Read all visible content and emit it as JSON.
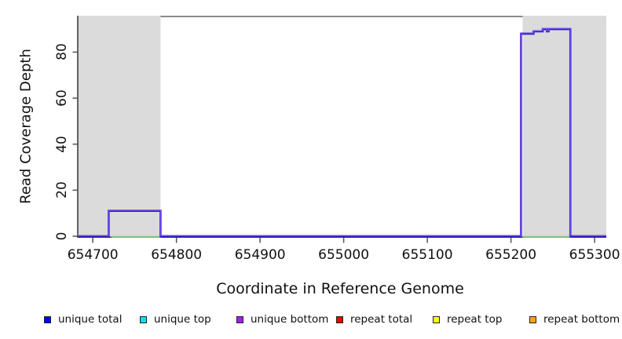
{
  "chart_data": {
    "type": "line",
    "subtype": "step-coverage",
    "title": "",
    "xlabel": "Coordinate in Reference Genome",
    "ylabel": "Read Coverage Depth",
    "xlim": [
      654682,
      655314
    ],
    "ylim": [
      0,
      95.8
    ],
    "grid": false,
    "xticks": [
      654700,
      654800,
      654900,
      655000,
      655100,
      655200,
      655300
    ],
    "xtick_labels": [
      "654700",
      "654800",
      "654900",
      "655000",
      "655100",
      "655200",
      "655300"
    ],
    "yticks": [
      0,
      20,
      40,
      60,
      80
    ],
    "ytick_labels": [
      "0",
      "20",
      "40",
      "60",
      "80"
    ],
    "repeat_regions": [
      {
        "start": 654682,
        "end": 654781
      },
      {
        "start": 655214,
        "end": 655314
      }
    ],
    "coverage_steps": [
      {
        "x": 654682,
        "depth": 0
      },
      {
        "x": 654719,
        "depth": 11
      },
      {
        "x": 654781,
        "depth": 0
      },
      {
        "x": 655212,
        "depth": 88
      },
      {
        "x": 655227,
        "depth": 89
      },
      {
        "x": 655238,
        "depth": 90
      },
      {
        "x": 655243,
        "depth": 89
      },
      {
        "x": 655245,
        "depth": 90
      },
      {
        "x": 655271,
        "depth": 0
      }
    ],
    "coverage_end_x": 655314,
    "zero_line_green_segments": [
      {
        "start": 654722,
        "end": 654781
      },
      {
        "start": 655214,
        "end": 655271
      }
    ],
    "colors": {
      "coverage_line_blue": "#2A1FD0",
      "coverage_line_purple": "#7B49E8",
      "zero_green": "#85C785",
      "repeat_region_fill": "#DBDBDB",
      "axis": "#333333",
      "box_top_line": "#7A7A7A",
      "tick": "#555555"
    },
    "legend_position": "bottom"
  },
  "legend": {
    "items": [
      {
        "label": "unique total",
        "color": "#0000FF"
      },
      {
        "label": "unique top",
        "color": "#00E5EE"
      },
      {
        "label": "unique bottom",
        "color": "#A020F0"
      },
      {
        "label": "repeat total",
        "color": "#EE0000"
      },
      {
        "label": "repeat top",
        "color": "#FFFF00"
      },
      {
        "label": "repeat bottom",
        "color": "#FFA500"
      }
    ]
  }
}
